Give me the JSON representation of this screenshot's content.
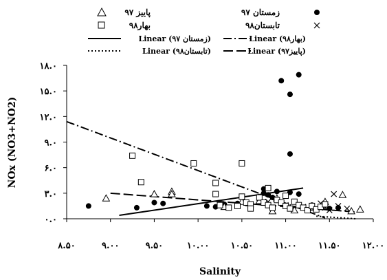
{
  "chart_data": {
    "type": "scatter",
    "title": "",
    "xlabel": "Salinity",
    "ylabel": "NOx (NO3+NO2)",
    "xlim": [
      8.5,
      12.0
    ],
    "ylim": [
      0,
      18
    ],
    "x_ticks": [
      8.5,
      9.0,
      9.5,
      10.0,
      10.5,
      11.0,
      11.5,
      12.0
    ],
    "x_tick_labels": [
      "۸.۵۰",
      "۹.۰۰",
      "۹.۵۰",
      "۱۰.۰۰",
      "۱۰.۵۰",
      "۱۱.۰۰",
      "۱۱.۵۰",
      "۱۲.۰۰"
    ],
    "y_ticks": [
      0,
      3,
      6,
      9,
      12,
      15,
      18
    ],
    "y_tick_labels": [
      "۰.۰",
      "۳.۰",
      "۶.۰",
      "۹.۰",
      "۱۲.۰",
      "۱۵.۰",
      "۱۸.۰"
    ],
    "grid": false,
    "legend_position": "top",
    "series": [
      {
        "name": "زمستان ۹۷",
        "marker": "filled-circle",
        "points": [
          [
            8.75,
            1.5
          ],
          [
            9.3,
            1.3
          ],
          [
            9.5,
            1.9
          ],
          [
            9.6,
            1.8
          ],
          [
            10.1,
            1.5
          ],
          [
            10.2,
            1.4
          ],
          [
            10.3,
            1.7
          ],
          [
            10.45,
            1.8
          ],
          [
            10.55,
            1.8
          ],
          [
            10.7,
            2.2
          ],
          [
            10.75,
            3.0
          ],
          [
            10.75,
            3.5
          ],
          [
            10.8,
            2.8
          ],
          [
            10.85,
            2.5
          ],
          [
            10.9,
            3.2
          ],
          [
            10.95,
            16.2
          ],
          [
            11.05,
            7.6
          ],
          [
            11.05,
            14.6
          ],
          [
            11.05,
            3.1
          ],
          [
            11.15,
            16.9
          ],
          [
            11.15,
            2.9
          ],
          [
            11.3,
            1.6
          ],
          [
            11.5,
            1.2
          ],
          [
            11.6,
            1.3
          ]
        ]
      },
      {
        "name": "پاییز ۹۷",
        "marker": "open-triangle",
        "points": [
          [
            8.95,
            2.4
          ],
          [
            9.5,
            2.9
          ],
          [
            9.7,
            3.2
          ],
          [
            9.7,
            2.9
          ],
          [
            10.3,
            1.4
          ],
          [
            10.5,
            2.0
          ],
          [
            10.7,
            2.1
          ],
          [
            10.85,
            0.9
          ],
          [
            10.9,
            2.4
          ],
          [
            11.1,
            1.0
          ],
          [
            11.3,
            1.3
          ],
          [
            11.45,
            2.0
          ],
          [
            11.65,
            2.8
          ],
          [
            11.75,
            0.9
          ],
          [
            11.85,
            1.1
          ]
        ]
      },
      {
        "name": "تابستان۹۸",
        "marker": "cross",
        "points": [
          [
            10.6,
            1.5
          ],
          [
            10.8,
            2.0
          ],
          [
            11.0,
            1.6
          ],
          [
            11.2,
            1.4
          ],
          [
            11.3,
            1.2
          ],
          [
            11.4,
            1.8
          ],
          [
            11.45,
            1.3
          ],
          [
            11.5,
            1.0
          ],
          [
            11.55,
            2.9
          ],
          [
            11.6,
            1.5
          ],
          [
            11.7,
            1.2
          ]
        ]
      },
      {
        "name": "بهار۹۸",
        "marker": "open-square",
        "points": [
          [
            9.25,
            7.4
          ],
          [
            9.35,
            4.3
          ],
          [
            9.95,
            6.5
          ],
          [
            10.2,
            4.2
          ],
          [
            10.2,
            2.9
          ],
          [
            10.25,
            1.6
          ],
          [
            10.35,
            1.3
          ],
          [
            10.45,
            1.5
          ],
          [
            10.5,
            6.5
          ],
          [
            10.5,
            2.6
          ],
          [
            10.55,
            1.9
          ],
          [
            10.6,
            1.7
          ],
          [
            10.6,
            1.2
          ],
          [
            10.7,
            2.5
          ],
          [
            10.75,
            1.9
          ],
          [
            10.8,
            1.6
          ],
          [
            10.8,
            3.6
          ],
          [
            10.85,
            1.3
          ],
          [
            10.9,
            2.2
          ],
          [
            10.95,
            1.9
          ],
          [
            11.0,
            1.5
          ],
          [
            11.0,
            2.7
          ],
          [
            11.05,
            1.2
          ],
          [
            11.1,
            2.0
          ],
          [
            11.15,
            1.6
          ],
          [
            11.2,
            1.3
          ],
          [
            11.25,
            1.0
          ],
          [
            11.3,
            1.5
          ],
          [
            11.35,
            1.1
          ],
          [
            11.4,
            1.4
          ],
          [
            11.45,
            1.7
          ]
        ]
      }
    ],
    "trendlines": [
      {
        "name": "Linear (زمستان ۹۷)",
        "style": "solid",
        "x": [
          9.1,
          11.2
        ],
        "y": [
          0.4,
          3.6
        ]
      },
      {
        "name": "Linear (بهار۹۸)",
        "style": "dash-dot",
        "x": [
          8.5,
          11.45
        ],
        "y": [
          11.4,
          0.1
        ]
      },
      {
        "name": "Linear (تابستان۹۸)",
        "style": "dotted",
        "x": [
          11.35,
          11.8
        ],
        "y": [
          0.3,
          0.0
        ]
      },
      {
        "name": "Linear (پاییز۹۷)",
        "style": "long-dash",
        "x": [
          9.0,
          11.8
        ],
        "y": [
          3.0,
          0.8
        ]
      }
    ]
  }
}
